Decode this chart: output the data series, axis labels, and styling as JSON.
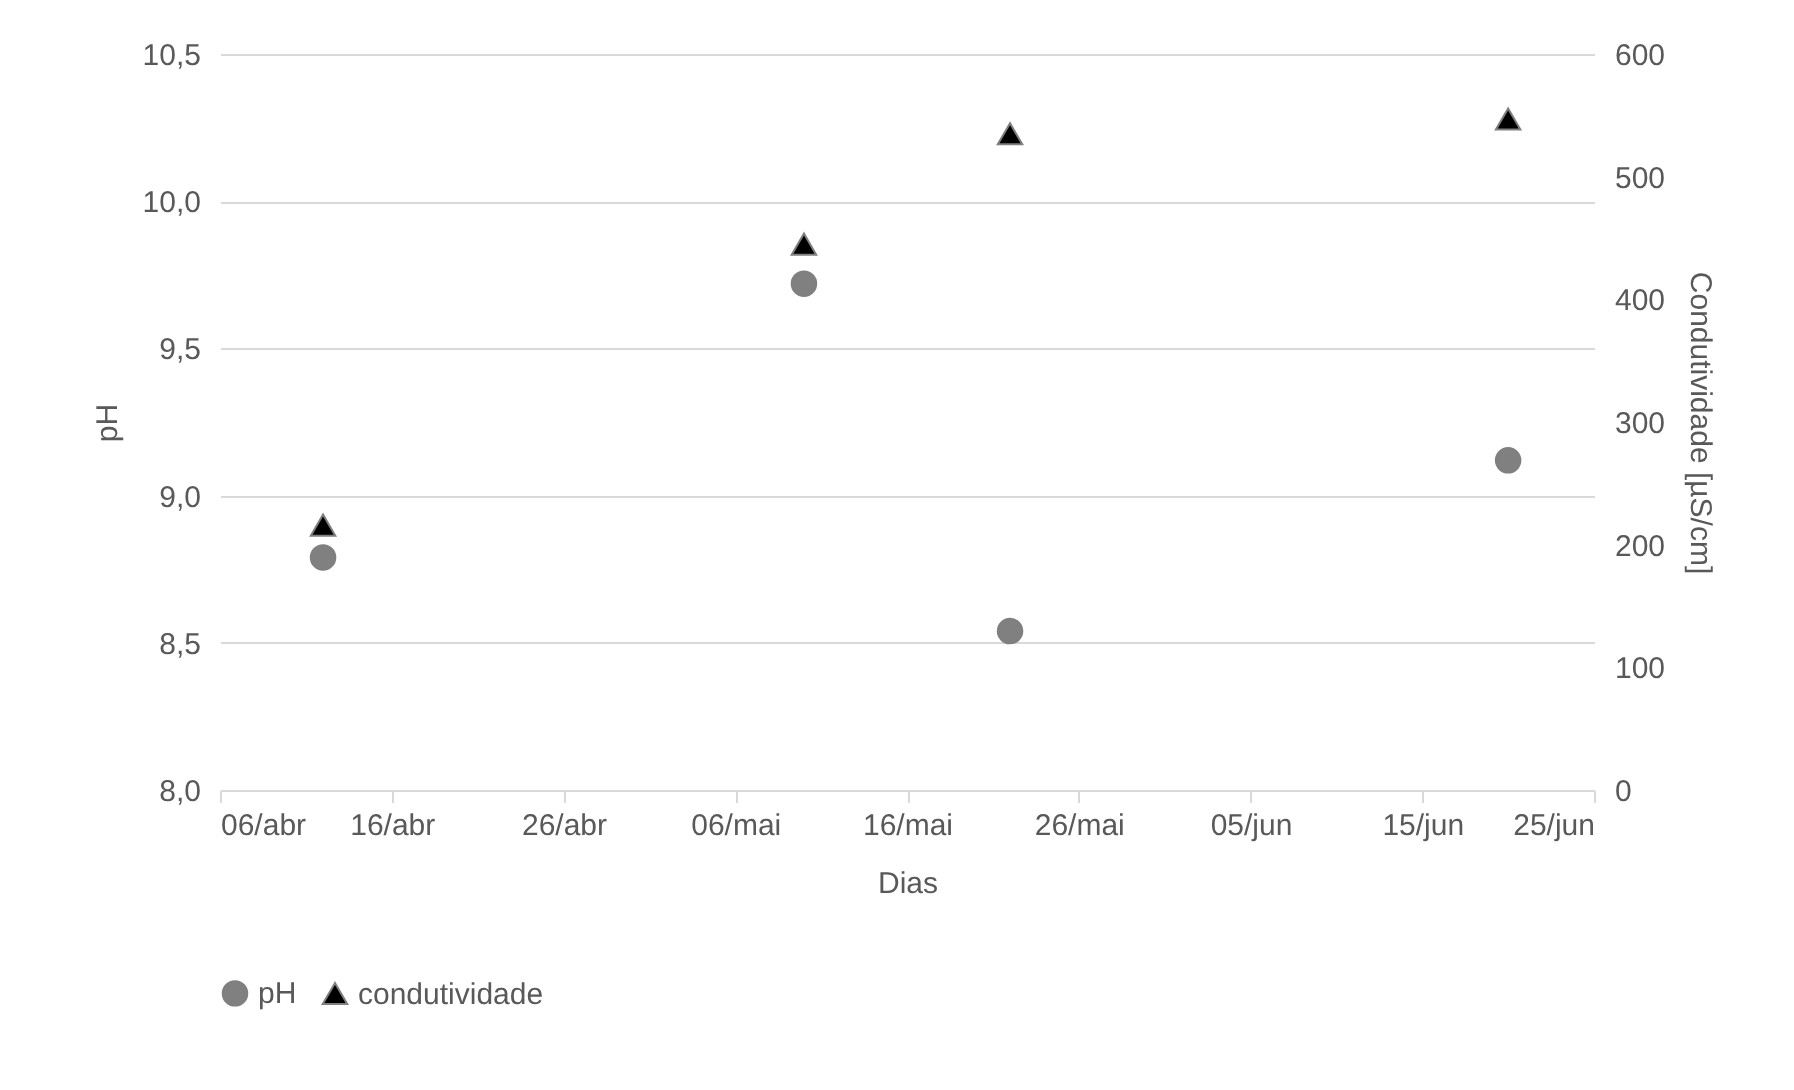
{
  "chart_data": {
    "type": "scatter",
    "xlabel": "Dias",
    "ylabel": "pH",
    "y2label": "Condutividade [µS/cm]",
    "xlim": [
      "--04-06",
      "--06-25"
    ],
    "xticks": [
      {
        "value": "--04-06",
        "label": "06/abr"
      },
      {
        "value": "--04-16",
        "label": "16/abr"
      },
      {
        "value": "--04-26",
        "label": "26/abr"
      },
      {
        "value": "--05-06",
        "label": "06/mai"
      },
      {
        "value": "--05-16",
        "label": "16/mai"
      },
      {
        "value": "--05-26",
        "label": "26/mai"
      },
      {
        "value": "--06-05",
        "label": "05/jun"
      },
      {
        "value": "--06-15",
        "label": "15/jun"
      },
      {
        "value": "--06-25",
        "label": "25/jun"
      }
    ],
    "ylim": [
      8.0,
      10.5
    ],
    "yticks": [
      {
        "value": 8.0,
        "label": "8,0"
      },
      {
        "value": 8.5,
        "label": "8,5"
      },
      {
        "value": 9.0,
        "label": "9,0"
      },
      {
        "value": 9.5,
        "label": "9,5"
      },
      {
        "value": 10.0,
        "label": "10,0"
      },
      {
        "value": 10.5,
        "label": "10,5"
      }
    ],
    "y2lim": [
      0,
      600
    ],
    "y2ticks": [
      0,
      100,
      200,
      300,
      400,
      500,
      600
    ],
    "x": [
      "--04-12",
      "--05-10",
      "--05-22",
      "--06-20"
    ],
    "series": [
      {
        "name": "pH",
        "color": "#808080",
        "marker": "circle",
        "values": [
          8.79,
          9.72,
          8.54,
          9.12
        ]
      },
      {
        "name": "condutividade",
        "color": "#000000",
        "marker": "triangle",
        "axis": "y2",
        "values": [
          216,
          445,
          535,
          547
        ]
      }
    ],
    "grid": "y",
    "legend": "bottom"
  }
}
